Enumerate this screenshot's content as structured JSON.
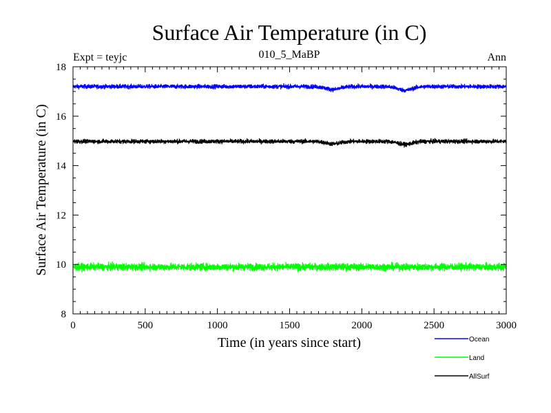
{
  "chart_data": {
    "type": "line",
    "title": "Surface Air Temperature (in C)",
    "subtitle_left": "Expt = teyjc",
    "subtitle_center": "010_5_MaBP",
    "subtitle_right": "Ann",
    "xlabel": "Time (in years since start)",
    "ylabel": "Surface Air Temperature (in C)",
    "xlim": [
      0,
      3000
    ],
    "ylim": [
      8,
      18
    ],
    "x_ticks": [
      0,
      500,
      1000,
      1500,
      2000,
      2500,
      3000
    ],
    "y_ticks": [
      8,
      10,
      12,
      14,
      16,
      18
    ],
    "grid": false,
    "legend_position": "bottom-right",
    "series": [
      {
        "name": "Ocean",
        "color": "#0000ff",
        "mean": 17.2,
        "noise": 0.08,
        "dips": [
          {
            "x": 1800,
            "depth": 0.12
          },
          {
            "x": 2300,
            "depth": 0.15
          }
        ]
      },
      {
        "name": "Land",
        "color": "#00ff00",
        "mean": 9.9,
        "noise": 0.14,
        "dips": []
      },
      {
        "name": "AllSurf",
        "color": "#000000",
        "mean": 14.98,
        "noise": 0.08,
        "dips": [
          {
            "x": 1800,
            "depth": 0.1
          },
          {
            "x": 2300,
            "depth": 0.12
          }
        ]
      }
    ]
  }
}
